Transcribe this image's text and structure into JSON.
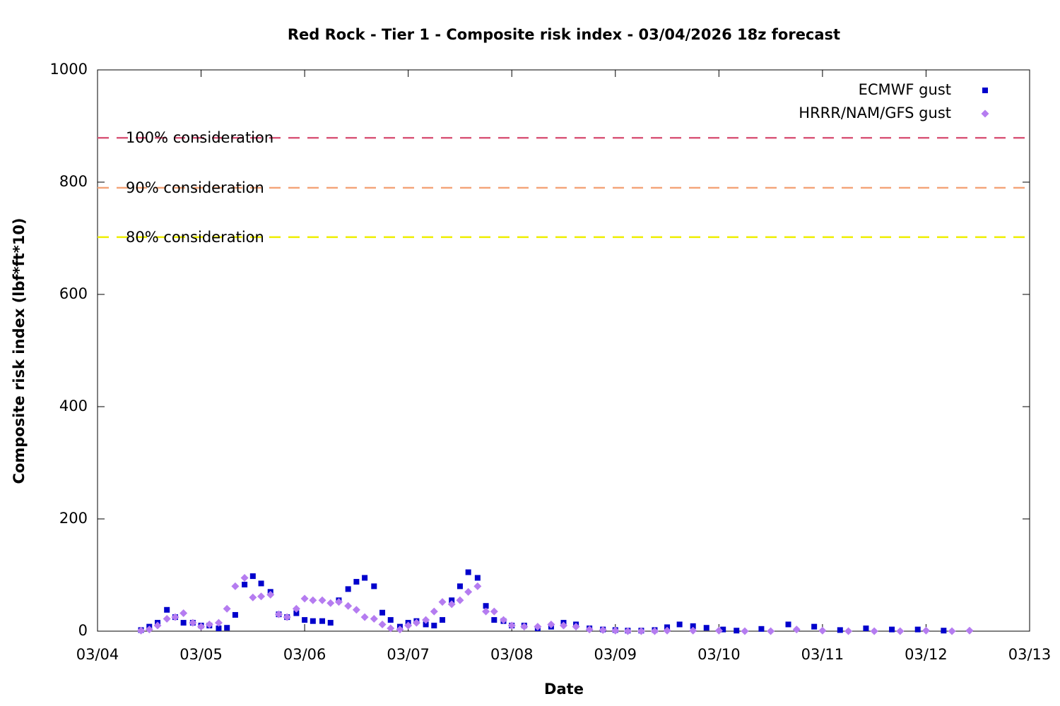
{
  "chart_data": {
    "type": "scatter",
    "title": "Red Rock - Tier 1 - Composite risk index - 03/04/2026 18z forecast",
    "x_label": "Date",
    "y_label": "Composite risk index (lbf*ft*10)",
    "xlim": [
      4,
      13
    ],
    "xticks": [
      {
        "value": 4,
        "label": "03/04"
      },
      {
        "value": 5,
        "label": "03/05"
      },
      {
        "value": 6,
        "label": "03/06"
      },
      {
        "value": 7,
        "label": "03/07"
      },
      {
        "value": 8,
        "label": "03/08"
      },
      {
        "value": 9,
        "label": "03/09"
      },
      {
        "value": 10,
        "label": "03/10"
      },
      {
        "value": 11,
        "label": "03/11"
      },
      {
        "value": 12,
        "label": "03/12"
      },
      {
        "value": 13,
        "label": "03/13"
      }
    ],
    "ylim": [
      0,
      1000
    ],
    "yticks": [
      0,
      200,
      400,
      600,
      800,
      1000
    ],
    "legend": "upper right",
    "thresholds": [
      {
        "label": "100% consideration",
        "value": 879,
        "color": "#d9587a"
      },
      {
        "label": "90% consideration",
        "value": 790,
        "color": "#f4a57a"
      },
      {
        "label": "80% consideration",
        "value": 702,
        "color": "#eeee00"
      }
    ],
    "series": [
      {
        "name": "ECMWF gust",
        "color": "#0000cc",
        "marker": "square",
        "x": [
          4.42,
          4.5,
          4.58,
          4.67,
          4.75,
          4.83,
          4.92,
          5.0,
          5.08,
          5.17,
          5.25,
          5.33,
          5.42,
          5.5,
          5.58,
          5.67,
          5.75,
          5.83,
          5.92,
          6.0,
          6.08,
          6.17,
          6.25,
          6.33,
          6.42,
          6.5,
          6.58,
          6.67,
          6.75,
          6.83,
          6.92,
          7.0,
          7.08,
          7.17,
          7.25,
          7.33,
          7.42,
          7.5,
          7.58,
          7.67,
          7.75,
          7.83,
          7.92,
          8.0,
          8.12,
          8.25,
          8.38,
          8.5,
          8.62,
          8.75,
          8.88,
          9.0,
          9.12,
          9.25,
          9.38,
          9.5,
          9.62,
          9.75,
          9.88,
          10.04,
          10.17,
          10.41,
          10.67,
          10.92,
          11.17,
          11.42,
          11.67,
          11.92,
          12.17
        ],
        "values": [
          2,
          8,
          15,
          38,
          25,
          15,
          15,
          10,
          10,
          5,
          6,
          29,
          83,
          98,
          85,
          70,
          30,
          25,
          32,
          20,
          18,
          18,
          15,
          55,
          75,
          88,
          95,
          80,
          33,
          20,
          8,
          15,
          18,
          12,
          10,
          20,
          55,
          80,
          105,
          95,
          45,
          20,
          18,
          10,
          10,
          5,
          8,
          15,
          12,
          5,
          3,
          2,
          1,
          1,
          2,
          7,
          12,
          9,
          6,
          3,
          1,
          4,
          12,
          8,
          2,
          5,
          3,
          3,
          1
        ]
      },
      {
        "name": "HRRR/NAM/GFS gust",
        "color": "#b57cf0",
        "marker": "diamond",
        "x": [
          4.42,
          4.5,
          4.58,
          4.67,
          4.75,
          4.83,
          4.92,
          5.0,
          5.08,
          5.17,
          5.25,
          5.33,
          5.42,
          5.5,
          5.58,
          5.67,
          5.75,
          5.83,
          5.92,
          6.0,
          6.08,
          6.17,
          6.25,
          6.33,
          6.42,
          6.5,
          6.58,
          6.67,
          6.75,
          6.83,
          6.92,
          7.0,
          7.08,
          7.17,
          7.25,
          7.33,
          7.42,
          7.5,
          7.58,
          7.67,
          7.75,
          7.83,
          7.92,
          8.0,
          8.12,
          8.25,
          8.38,
          8.5,
          8.62,
          8.75,
          8.88,
          9.0,
          9.12,
          9.25,
          9.38,
          9.5,
          9.75,
          10.0,
          10.25,
          10.5,
          10.75,
          11.0,
          11.25,
          11.5,
          11.75,
          12.0,
          12.25,
          12.42
        ],
        "values": [
          1,
          3,
          10,
          22,
          25,
          32,
          15,
          8,
          12,
          15,
          40,
          80,
          95,
          60,
          62,
          65,
          30,
          25,
          40,
          58,
          55,
          55,
          50,
          52,
          45,
          38,
          25,
          22,
          12,
          5,
          3,
          10,
          15,
          20,
          35,
          52,
          48,
          55,
          70,
          80,
          35,
          35,
          20,
          10,
          8,
          8,
          12,
          10,
          8,
          3,
          2,
          1,
          0,
          0,
          0,
          1,
          1,
          1,
          0,
          0,
          3,
          1,
          0,
          0,
          0,
          1,
          0,
          1
        ]
      }
    ]
  }
}
